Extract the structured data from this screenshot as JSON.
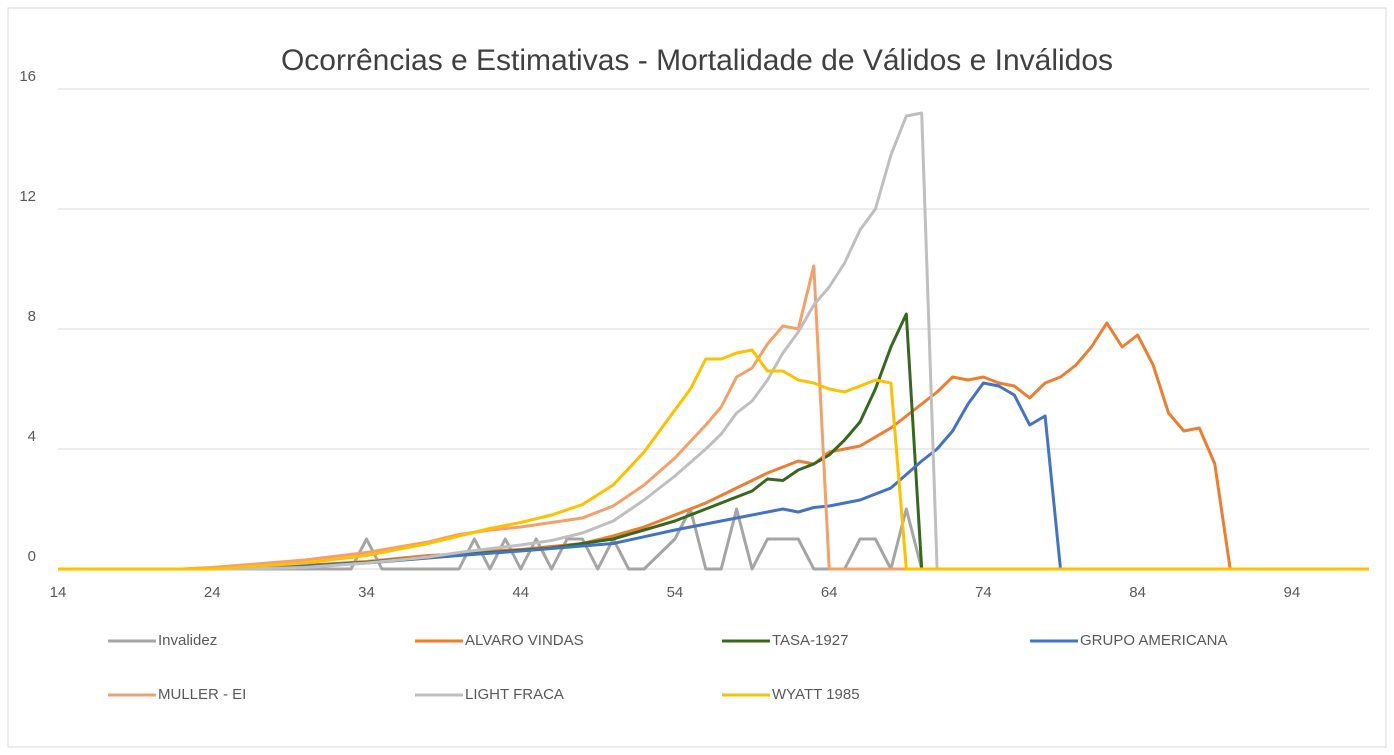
{
  "chart_data": {
    "type": "line",
    "title": "Ocorrências e Estimativas - Mortalidade de Válidos e Inválidos",
    "xlim": [
      14,
      99
    ],
    "xticks": [
      14,
      24,
      34,
      44,
      54,
      64,
      74,
      84,
      94
    ],
    "ylim": [
      0,
      16
    ],
    "yticks": [
      0,
      4,
      8,
      12,
      16
    ],
    "grid": true,
    "series": [
      {
        "name": "Invalidez",
        "color": "#a5a5a5",
        "x": [
          14,
          33,
          34,
          35,
          40,
          41,
          42,
          43,
          44,
          45,
          46,
          47,
          48,
          49,
          50,
          51,
          52,
          54,
          55,
          56,
          57,
          58,
          59,
          60,
          61,
          62,
          63,
          65,
          66,
          67,
          68,
          69,
          70,
          99
        ],
        "values": [
          0,
          0,
          1,
          0,
          0,
          1,
          0,
          1,
          0,
          1,
          0,
          1,
          1,
          0,
          1,
          0,
          0,
          1,
          2,
          0,
          0,
          2,
          0,
          1,
          1,
          1,
          0,
          0,
          1,
          1,
          0,
          2,
          0,
          0
        ]
      },
      {
        "name": "ALVARO VINDAS",
        "color": "#ed7d31",
        "x": [
          14,
          24,
          26,
          30,
          34,
          36,
          38,
          40,
          42,
          44,
          46,
          48,
          50,
          52,
          54,
          56,
          58,
          60,
          62,
          63,
          64,
          66,
          68,
          70,
          71,
          72,
          73,
          74,
          75,
          76,
          77,
          78,
          79,
          80,
          81,
          82,
          83,
          84,
          85,
          86,
          87,
          88,
          89,
          90,
          99
        ],
        "values": [
          0,
          0,
          0.04,
          0.12,
          0.25,
          0.35,
          0.45,
          0.5,
          0.6,
          0.65,
          0.75,
          0.85,
          1.1,
          1.4,
          1.8,
          2.2,
          2.7,
          3.2,
          3.6,
          3.5,
          3.9,
          4.1,
          4.7,
          5.5,
          5.9,
          6.4,
          6.3,
          6.4,
          6.2,
          6.1,
          5.7,
          6.2,
          6.4,
          6.8,
          7.4,
          8.2,
          7.4,
          7.8,
          6.8,
          5.2,
          4.6,
          4.7,
          3.5,
          0,
          0
        ]
      },
      {
        "name": "TASA-1927",
        "color": "#38681f",
        "x": [
          14,
          24,
          30,
          34,
          38,
          42,
          46,
          50,
          54,
          56,
          58,
          59,
          60,
          61,
          62,
          63,
          64,
          65,
          66,
          67,
          68,
          69,
          70,
          99
        ],
        "values": [
          0,
          0,
          0.1,
          0.22,
          0.4,
          0.55,
          0.7,
          1.0,
          1.6,
          2.0,
          2.4,
          2.6,
          3.0,
          2.95,
          3.3,
          3.5,
          3.8,
          4.3,
          4.9,
          6.0,
          7.4,
          8.5,
          0,
          0
        ]
      },
      {
        "name": "GRUPO AMERICANA",
        "color": "#4472c4",
        "x": [
          14,
          24,
          30,
          34,
          40,
          44,
          50,
          54,
          56,
          58,
          60,
          61,
          62,
          63,
          64,
          66,
          68,
          70,
          71,
          72,
          73,
          74,
          75,
          76,
          77,
          78,
          79,
          99
        ],
        "values": [
          0,
          0,
          0.1,
          0.2,
          0.45,
          0.6,
          0.85,
          1.3,
          1.5,
          1.7,
          1.9,
          2.0,
          1.9,
          2.05,
          2.1,
          2.3,
          2.7,
          3.6,
          4.0,
          4.6,
          5.5,
          6.2,
          6.1,
          5.8,
          4.8,
          5.1,
          0,
          0
        ]
      },
      {
        "name": "MULLER - EI",
        "color": "#f4a06a",
        "x": [
          14,
          22,
          24,
          30,
          34,
          38,
          40,
          42,
          44,
          46,
          48,
          50,
          52,
          54,
          56,
          57,
          58,
          59,
          60,
          61,
          62,
          63,
          64,
          99
        ],
        "values": [
          0,
          0,
          0.05,
          0.3,
          0.55,
          0.9,
          1.15,
          1.3,
          1.4,
          1.55,
          1.7,
          2.1,
          2.8,
          3.7,
          4.8,
          5.4,
          6.4,
          6.7,
          7.5,
          8.1,
          8.0,
          10.1,
          0,
          0
        ]
      },
      {
        "name": "LIGHT FRACA",
        "color": "#bfbfbf",
        "x": [
          14,
          26,
          30,
          34,
          38,
          40,
          44,
          46,
          48,
          50,
          52,
          54,
          56,
          57,
          58,
          59,
          60,
          61,
          62,
          63,
          64,
          65,
          66,
          67,
          68,
          69,
          70,
          71,
          99
        ],
        "values": [
          0,
          0,
          0.05,
          0.2,
          0.4,
          0.55,
          0.8,
          0.95,
          1.2,
          1.6,
          2.3,
          3.1,
          4.0,
          4.5,
          5.2,
          5.6,
          6.3,
          7.2,
          7.9,
          8.8,
          9.4,
          10.2,
          11.3,
          12.0,
          13.8,
          15.1,
          15.2,
          0,
          0
        ]
      },
      {
        "name": "WYATT 1985",
        "color": "#ffc000",
        "x": [
          14,
          24,
          30,
          34,
          38,
          40,
          42,
          44,
          46,
          48,
          50,
          52,
          54,
          55,
          56,
          57,
          58,
          59,
          60,
          61,
          62,
          63,
          64,
          65,
          66,
          67,
          68,
          69,
          99
        ],
        "values": [
          0,
          0,
          0.2,
          0.45,
          0.85,
          1.1,
          1.35,
          1.55,
          1.8,
          2.15,
          2.8,
          3.9,
          5.3,
          6.0,
          7.0,
          7.0,
          7.2,
          7.3,
          6.6,
          6.6,
          6.3,
          6.2,
          6.0,
          5.9,
          6.1,
          6.3,
          6.2,
          0,
          0
        ]
      }
    ]
  }
}
